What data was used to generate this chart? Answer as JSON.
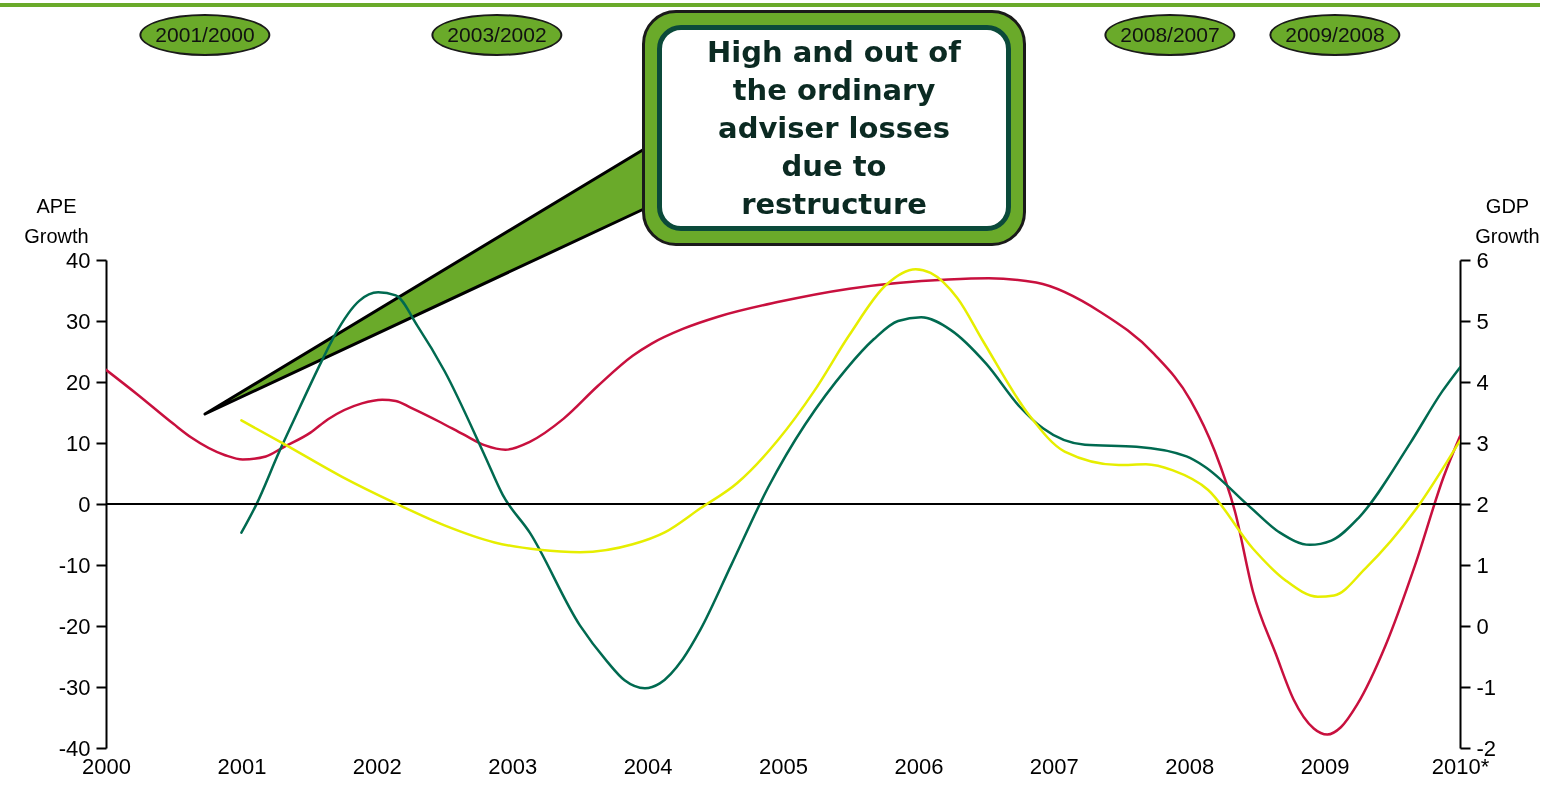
{
  "chart_data": {
    "type": "line",
    "ylabel": "APE Growth",
    "y2label": "GDP Growth",
    "xlim": [
      2000,
      2010
    ],
    "xticks": [
      2000,
      2001,
      2002,
      2003,
      2004,
      2005,
      2006,
      2007,
      2008,
      2009,
      {
        "value": 2010,
        "label": "2010*"
      }
    ],
    "ylim": [
      -40,
      40
    ],
    "yticks": [
      -40,
      -30,
      -20,
      -10,
      0,
      10,
      20,
      30,
      40
    ],
    "y2lim": [
      -2,
      6
    ],
    "y2ticks": [
      -2,
      -1,
      0,
      1,
      2,
      3,
      4,
      5,
      6
    ],
    "grid": false,
    "line_style": "solid",
    "marker": "none",
    "ref_lines": [
      {
        "axis": "y",
        "value": 0,
        "color": "#000000"
      }
    ],
    "annotations": [
      "2001/2000",
      "2003/2002",
      "2008/2007",
      "2009/2008",
      "High and out of the ordinary adviser losses due to restructure"
    ],
    "series": [
      {
        "color": "#c8103e",
        "x": [
          2000,
          2000.23,
          2000.5,
          2000.63,
          2000.88,
          2001.01,
          2001.18,
          2001.31,
          2001.51,
          2001.64,
          2001.89,
          2002.04,
          2002.14,
          2002.25,
          2002.47,
          2002.64,
          2002.8,
          2002.95,
          2003.13,
          2003.38,
          2003.63,
          2003.89,
          2004.03,
          2004.26,
          2004.52,
          2004.96,
          2005.49,
          2006.22,
          2006.52,
          2006.87,
          2007.35,
          2007.74,
          2008.01,
          2008.19,
          2008.34,
          2008.47,
          2008.64,
          2008.77,
          2008.92,
          2009.02,
          2009.12,
          2009.24,
          2009.45,
          2009.67,
          2009.88,
          2010
        ],
        "values": [
          22,
          18,
          13.1,
          10.9,
          8,
          7.3,
          7.8,
          9.3,
          11.7,
          13.9,
          16.5,
          17.1,
          16.9,
          15.8,
          13.4,
          11.4,
          9.6,
          8.9,
          10.2,
          14,
          19.3,
          24.3,
          26.3,
          28.7,
          30.7,
          33.1,
          35.3,
          36.8,
          37,
          36.3,
          31.4,
          24.6,
          17,
          8.6,
          -1.4,
          -14.3,
          -24.6,
          -32,
          -36.8,
          -37.8,
          -36.6,
          -32.9,
          -23.2,
          -9.9,
          4.5,
          11.1
        ]
      },
      {
        "color": "#006a50",
        "x": [
          2001,
          2001.11,
          2001.28,
          2001.38,
          2001.59,
          2001.69,
          2001.87,
          2002.01,
          2002.14,
          2002.3,
          2002.5,
          2002.8,
          2002.93,
          2003.13,
          2003.5,
          2003.7,
          2003.83,
          2003.98,
          2004.09,
          2004.26,
          2004.39,
          2004.62,
          2004.89,
          2005.47,
          2005.67,
          2005.85,
          2006.02,
          2006.24,
          2006.5,
          2006.75,
          2006.92,
          2007.23,
          2007.61,
          2007.98,
          2008.11,
          2008.44,
          2008.67,
          2008.89,
          2009.05,
          2009.25,
          2009.63,
          2009.87,
          2010
        ],
        "values": [
          -4.7,
          -0.1,
          8.6,
          13.4,
          23.3,
          27.7,
          33.3,
          34.7,
          34.2,
          29.2,
          21.8,
          7.8,
          1.5,
          -4.7,
          -19.9,
          -25.8,
          -28.9,
          -30.2,
          -29.4,
          -25.4,
          -20.6,
          -9.9,
          2.7,
          22.2,
          27,
          30,
          30.6,
          28.5,
          23,
          15.9,
          12.4,
          9.7,
          9.4,
          7.8,
          6.2,
          -0.3,
          -4.7,
          -6.7,
          -6,
          -2.3,
          9.9,
          18.5,
          22.4
        ]
      },
      {
        "color": "#e6ee00",
        "axis": "y2",
        "x": [
          2001,
          2001.31,
          2001.74,
          2002.14,
          2002.5,
          2002.87,
          2003.2,
          2003.5,
          2003.89,
          2004.13,
          2004.39,
          2004.66,
          2004.96,
          2005.23,
          2005.49,
          2005.76,
          2005.98,
          2006.09,
          2006.29,
          2006.48,
          2006.82,
          2007.08,
          2007.48,
          2007.68,
          2007.88,
          2008.14,
          2008.47,
          2008.71,
          2008.95,
          2009.07,
          2009.3,
          2009.67,
          2010
        ],
        "values": [
          3.37,
          2.99,
          2.45,
          2.01,
          1.65,
          1.37,
          1.25,
          1.21,
          1.34,
          1.54,
          1.93,
          2.34,
          3.04,
          3.85,
          4.77,
          5.59,
          5.85,
          5.79,
          5.37,
          4.66,
          3.45,
          2.86,
          2.64,
          2.65,
          2.55,
          2.23,
          1.27,
          0.75,
          0.48,
          0.5,
          0.94,
          1.9,
          3.04
        ]
      }
    ]
  }
}
